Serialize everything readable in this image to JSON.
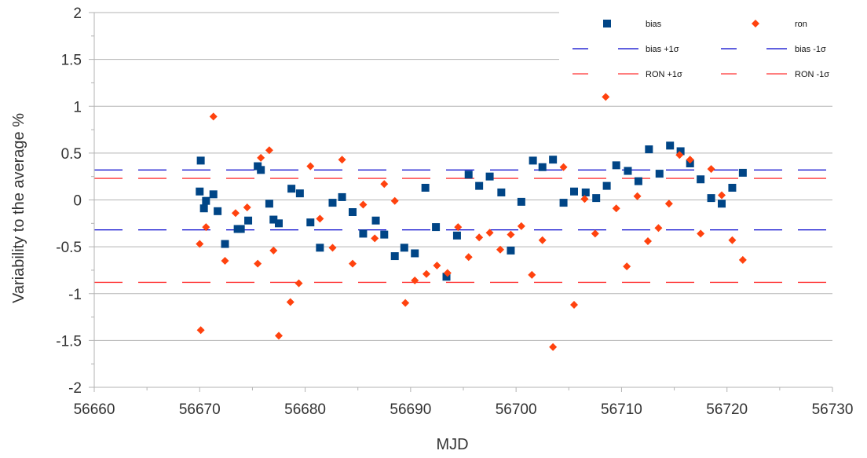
{
  "chart_data": {
    "type": "scatter",
    "xlabel": "MJD",
    "ylabel": "Variability to the average %",
    "xlim": [
      56660,
      56730
    ],
    "ylim": [
      -2,
      2
    ],
    "xticks": [
      "56660",
      "56670",
      "56680",
      "56690",
      "56700",
      "56710",
      "56720",
      "56730"
    ],
    "yticks": [
      "2",
      "1.5",
      "1",
      "0.5",
      "0",
      "-0.5",
      "-1",
      "-1.5",
      "-2"
    ],
    "grid": true,
    "legend_position": "top-right",
    "series": [
      {
        "name": "bias",
        "marker": "square",
        "color": "#004586",
        "x": [
          56670.0,
          56670.1,
          56670.4,
          56670.6,
          56671.3,
          56671.7,
          56672.4,
          56673.6,
          56673.9,
          56674.6,
          56675.5,
          56675.8,
          56676.6,
          56677.0,
          56677.5,
          56678.7,
          56679.5,
          56680.5,
          56681.4,
          56682.6,
          56683.5,
          56684.5,
          56685.5,
          56686.7,
          56687.5,
          56688.5,
          56689.4,
          56690.4,
          56691.4,
          56692.4,
          56693.4,
          56694.4,
          56695.5,
          56696.5,
          56697.5,
          56698.6,
          56699.5,
          56700.5,
          56701.6,
          56702.5,
          56703.5,
          56704.5,
          56705.5,
          56706.6,
          56707.6,
          56708.6,
          56709.5,
          56710.6,
          56711.6,
          56712.6,
          56713.6,
          56714.6,
          56715.6,
          56716.5,
          56717.5,
          56718.5,
          56719.5,
          56720.5,
          56721.5
        ],
        "y": [
          0.09,
          0.42,
          -0.09,
          -0.01,
          0.06,
          -0.12,
          -0.47,
          -0.31,
          -0.31,
          -0.22,
          0.36,
          0.32,
          -0.04,
          -0.21,
          -0.25,
          0.12,
          0.07,
          -0.24,
          -0.51,
          -0.03,
          0.03,
          -0.13,
          -0.36,
          -0.22,
          -0.37,
          -0.6,
          -0.51,
          -0.57,
          0.13,
          -0.29,
          -0.82,
          -0.38,
          0.27,
          0.15,
          0.25,
          0.08,
          -0.54,
          -0.02,
          0.42,
          0.35,
          0.43,
          -0.03,
          0.09,
          0.08,
          0.02,
          0.15,
          0.37,
          0.31,
          0.2,
          0.54,
          0.28,
          0.58,
          0.52,
          0.39,
          0.22,
          0.02,
          -0.04,
          0.13,
          0.29
        ]
      },
      {
        "name": "ron",
        "marker": "diamond",
        "color": "#ff420e",
        "x": [
          56670.0,
          56670.1,
          56670.6,
          56671.3,
          56672.4,
          56673.4,
          56674.5,
          56675.5,
          56675.8,
          56676.6,
          56677.0,
          56677.5,
          56678.6,
          56679.4,
          56680.5,
          56681.4,
          56682.6,
          56683.5,
          56684.5,
          56685.5,
          56686.6,
          56687.5,
          56688.5,
          56689.5,
          56690.4,
          56691.5,
          56692.5,
          56693.5,
          56694.5,
          56695.5,
          56696.5,
          56697.5,
          56698.5,
          56699.5,
          56700.5,
          56701.5,
          56702.5,
          56703.5,
          56704.5,
          56705.5,
          56706.5,
          56707.5,
          56708.5,
          56709.5,
          56710.5,
          56711.5,
          56712.5,
          56713.5,
          56714.5,
          56715.5,
          56716.5,
          56717.5,
          56718.5,
          56719.5,
          56720.5,
          56721.5
        ],
        "y": [
          -0.47,
          -1.39,
          -0.29,
          0.89,
          -0.65,
          -0.14,
          -0.08,
          -0.68,
          0.45,
          0.53,
          -0.54,
          -1.45,
          -1.09,
          -0.89,
          0.36,
          -0.2,
          -0.51,
          0.43,
          -0.68,
          -0.05,
          -0.41,
          0.17,
          -0.01,
          -1.1,
          -0.86,
          -0.79,
          -0.7,
          -0.78,
          -0.29,
          -0.61,
          -0.4,
          -0.35,
          -0.53,
          -0.37,
          -0.28,
          -0.8,
          -0.43,
          -1.57,
          0.35,
          -1.12,
          0.01,
          -0.36,
          1.1,
          -0.09,
          -0.71,
          0.04,
          -0.44,
          -0.3,
          -0.04,
          0.48,
          0.43,
          -0.36,
          0.33,
          0.05,
          -0.43,
          -0.64
        ]
      }
    ],
    "reference_lines": [
      {
        "name": "bias +1σ",
        "y": 0.32,
        "color": "#0000cc"
      },
      {
        "name": "bias -1σ",
        "y": -0.32,
        "color": "#0000cc"
      },
      {
        "name": "RON +1σ",
        "y": 0.23,
        "color": "#ff3333"
      },
      {
        "name": "RON -1σ",
        "y": -0.88,
        "color": "#ff3333"
      }
    ],
    "legend": [
      {
        "label": "bias",
        "kind": "square",
        "color": "#004586"
      },
      {
        "label": "ron",
        "kind": "diamond",
        "color": "#ff420e"
      },
      {
        "label": "bias +1σ",
        "kind": "dash",
        "color": "#0000cc"
      },
      {
        "label": "bias -1σ",
        "kind": "dash",
        "color": "#0000cc"
      },
      {
        "label": "RON +1σ",
        "kind": "dash",
        "color": "#ff3333"
      },
      {
        "label": "RON -1σ",
        "kind": "dash",
        "color": "#ff3333"
      }
    ]
  }
}
